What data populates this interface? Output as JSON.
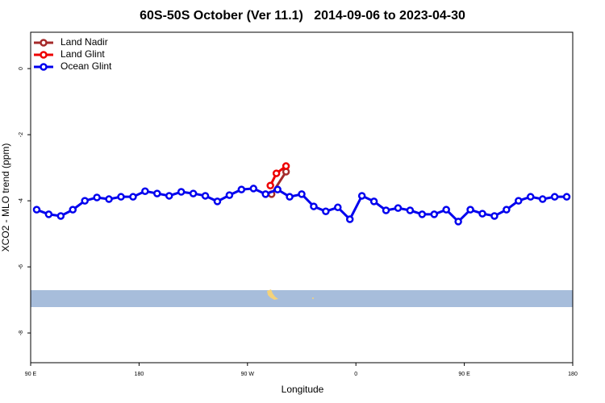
{
  "chart_data": {
    "type": "line",
    "title": "60S-50S October (Ver 11.1)   2014-09-06 to 2023-04-30",
    "xlabel": "Longitude",
    "ylabel": "XCO2 - MLO trend (ppm)",
    "xlim": [
      90,
      540
    ],
    "ylim": [
      -8.9,
      1.1
    ],
    "xticks": [
      {
        "value": 90,
        "label": "90 E"
      },
      {
        "value": 180,
        "label": "180"
      },
      {
        "value": 270,
        "label": "90 W"
      },
      {
        "value": 360,
        "label": "0"
      },
      {
        "value": 450,
        "label": "90 E"
      },
      {
        "value": 540,
        "label": "180"
      }
    ],
    "yticks": [
      0,
      -2,
      -4,
      -6,
      -8
    ],
    "legend": "top-left",
    "series": [
      {
        "name": "Land Nadir",
        "color": "#a52a2a",
        "x": [
          290,
          302
        ],
        "values": [
          -3.8,
          -3.12
        ]
      },
      {
        "name": "Land Glint",
        "color": "#ee0000",
        "x": [
          289,
          294,
          302
        ],
        "values": [
          -3.54,
          -3.17,
          -2.95
        ]
      },
      {
        "name": "Ocean Glint",
        "color": "#0000ee",
        "x": [
          95,
          105,
          115,
          125,
          135,
          145,
          155,
          165,
          175,
          185,
          195,
          205,
          215,
          225,
          235,
          245,
          255,
          265,
          275,
          285,
          295,
          305,
          315,
          325,
          335,
          345,
          355,
          365,
          375,
          385,
          395,
          405,
          415,
          425,
          435,
          445,
          455,
          465,
          475,
          485,
          495,
          505,
          515,
          525,
          535
        ],
        "values": [
          -4.27,
          -4.41,
          -4.46,
          -4.27,
          -4.0,
          -3.9,
          -3.95,
          -3.88,
          -3.88,
          -3.71,
          -3.78,
          -3.85,
          -3.73,
          -3.78,
          -3.85,
          -4.02,
          -3.83,
          -3.66,
          -3.63,
          -3.8,
          -3.66,
          -3.88,
          -3.8,
          -4.17,
          -4.32,
          -4.2,
          -4.56,
          -3.85,
          -4.02,
          -4.29,
          -4.22,
          -4.29,
          -4.41,
          -4.41,
          -4.27,
          -4.63,
          -4.27,
          -4.39,
          -4.46,
          -4.27,
          -4.0,
          -3.88,
          -3.95,
          -3.88,
          -3.88
        ]
      }
    ]
  }
}
